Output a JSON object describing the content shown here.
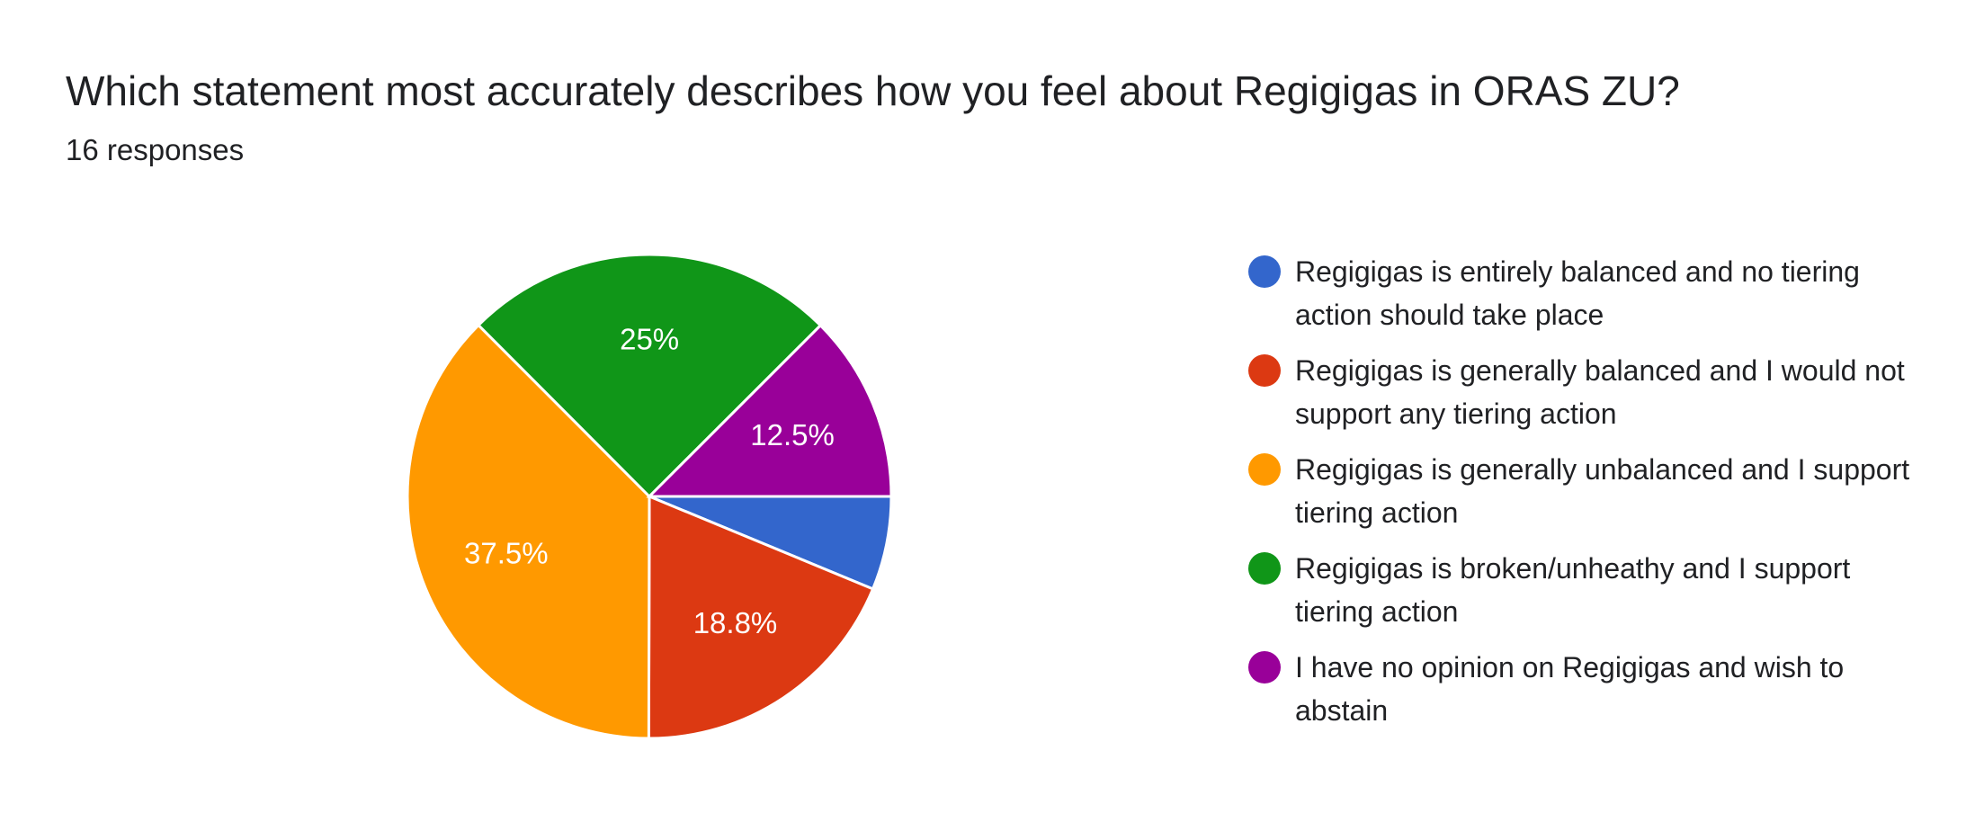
{
  "chart_data": {
    "type": "pie",
    "title": "Which statement most accurately describes how you feel about Regigigas in ORAS ZU?",
    "subtitle": "16 responses",
    "categories": [
      "Regigigas is entirely balanced and no tiering action should take place",
      "Regigigas is generally balanced and I would not support any tiering action",
      "Regigigas is generally unbalanced and I support tiering action",
      "Regigigas is broken/unheathy and I support tiering action",
      "I have no opinion on Regigigas and wish to abstain"
    ],
    "values": [
      6.25,
      18.8,
      37.5,
      25,
      12.5
    ],
    "value_labels": [
      null,
      "18.8%",
      "37.5%",
      "25%",
      "12.5%"
    ],
    "colors": [
      "#3366cc",
      "#dc3912",
      "#ff9900",
      "#109618",
      "#990099"
    ]
  }
}
